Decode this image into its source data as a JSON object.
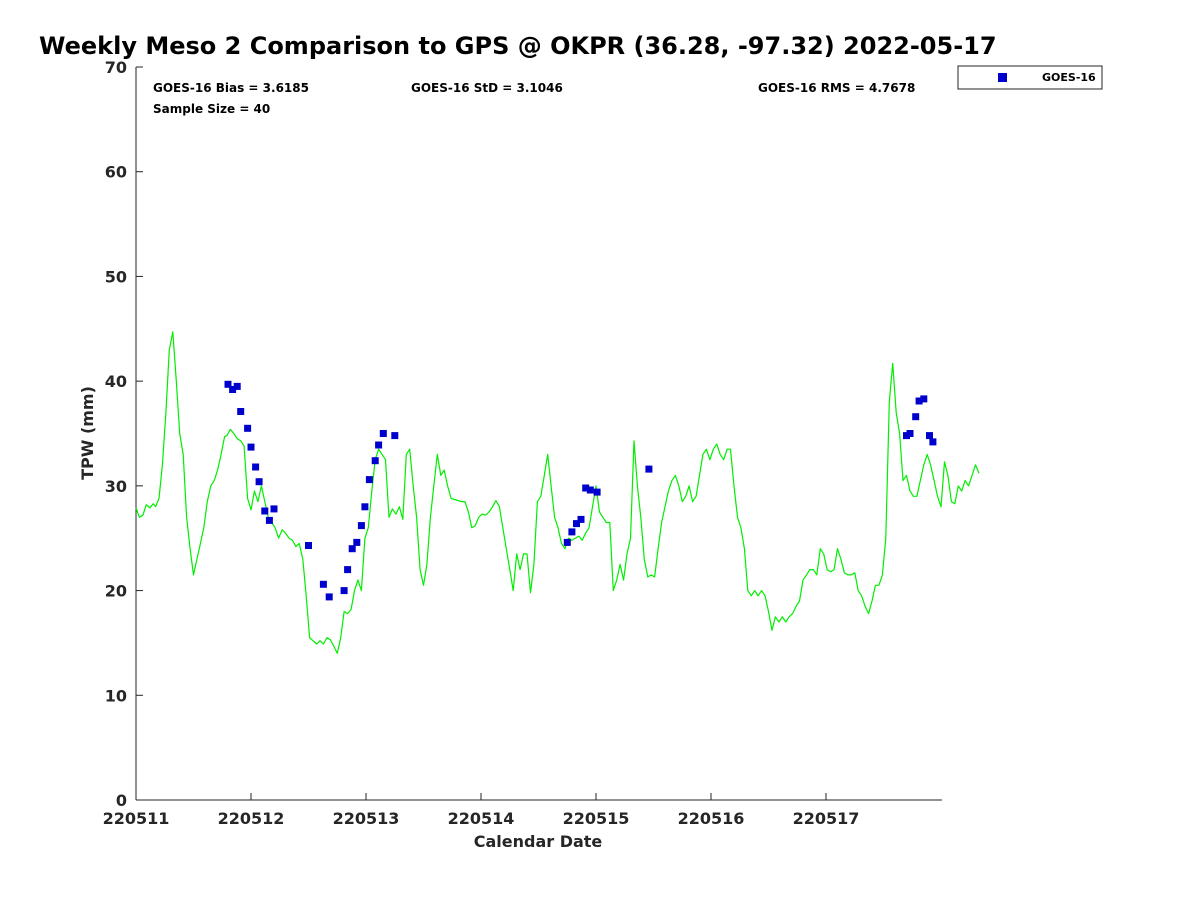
{
  "chart_data": {
    "type": "line",
    "title": "Weekly Meso 2 Comparison to GPS @ OKPR (36.28, -97.32) 2022-05-17",
    "xlabel": "Calendar Date",
    "ylabel": "TPW (mm)",
    "xlim": [
      0,
      7
    ],
    "ylim": [
      0,
      70
    ],
    "x_ticks": [
      0,
      1,
      2,
      3,
      4,
      5,
      6
    ],
    "x_tick_labels": [
      "220511",
      "220512",
      "220513",
      "220514",
      "220515",
      "220516",
      "220517"
    ],
    "y_ticks": [
      0,
      10,
      20,
      30,
      40,
      50,
      60,
      70
    ],
    "y_tick_labels": [
      "0",
      "10",
      "20",
      "30",
      "40",
      "50",
      "60",
      "70"
    ],
    "stats": {
      "bias": "GOES-16 Bias = 3.6185",
      "std": "GOES-16 StD = 3.1046",
      "rms": "GOES-16 RMS = 4.7678",
      "sample": "Sample Size = 40"
    },
    "legend": {
      "label": "GOES-16",
      "position": "top-right outside"
    },
    "colors": {
      "gps_line": "#00ee00",
      "goes_marker": "#0000cc"
    },
    "gps_series": {
      "name": "GPS",
      "points": [
        [
          0.0,
          27.9
        ],
        [
          0.03,
          27.0
        ],
        [
          0.06,
          27.2
        ],
        [
          0.09,
          28.2
        ],
        [
          0.12,
          27.9
        ],
        [
          0.15,
          28.3
        ],
        [
          0.17,
          28.0
        ],
        [
          0.2,
          28.8
        ],
        [
          0.23,
          32.0
        ],
        [
          0.26,
          37.0
        ],
        [
          0.29,
          43.0
        ],
        [
          0.32,
          44.7
        ],
        [
          0.35,
          40.0
        ],
        [
          0.38,
          35.0
        ],
        [
          0.41,
          33.0
        ],
        [
          0.44,
          27.0
        ],
        [
          0.47,
          24.0
        ],
        [
          0.5,
          21.5
        ],
        [
          0.53,
          23.0
        ],
        [
          0.56,
          24.5
        ],
        [
          0.59,
          26.0
        ],
        [
          0.62,
          28.5
        ],
        [
          0.65,
          30.0
        ],
        [
          0.68,
          30.5
        ],
        [
          0.71,
          31.5
        ],
        [
          0.74,
          33.0
        ],
        [
          0.77,
          34.7
        ],
        [
          0.79,
          34.8
        ],
        [
          0.82,
          35.4
        ],
        [
          0.85,
          35.0
        ],
        [
          0.88,
          34.5
        ],
        [
          0.91,
          34.3
        ],
        [
          0.94,
          33.8
        ],
        [
          0.97,
          28.8
        ],
        [
          1.0,
          27.7
        ],
        [
          1.03,
          29.5
        ],
        [
          1.06,
          28.5
        ],
        [
          1.09,
          30.0
        ],
        [
          1.12,
          28.5
        ],
        [
          1.15,
          27.0
        ],
        [
          1.18,
          26.5
        ],
        [
          1.21,
          26.0
        ],
        [
          1.24,
          25.0
        ],
        [
          1.27,
          25.8
        ],
        [
          1.3,
          25.5
        ],
        [
          1.33,
          25.0
        ],
        [
          1.36,
          24.8
        ],
        [
          1.39,
          24.2
        ],
        [
          1.42,
          24.5
        ],
        [
          1.45,
          23.0
        ],
        [
          1.48,
          19.5
        ],
        [
          1.51,
          15.5
        ],
        [
          1.54,
          15.2
        ],
        [
          1.57,
          14.9
        ],
        [
          1.6,
          15.2
        ],
        [
          1.63,
          14.9
        ],
        [
          1.66,
          15.5
        ],
        [
          1.69,
          15.3
        ],
        [
          1.72,
          14.7
        ],
        [
          1.75,
          14.0
        ],
        [
          1.78,
          15.5
        ],
        [
          1.81,
          18.0
        ],
        [
          1.84,
          17.8
        ],
        [
          1.87,
          18.2
        ],
        [
          1.9,
          20.0
        ],
        [
          1.93,
          21.0
        ],
        [
          1.96,
          20.0
        ],
        [
          1.99,
          25.0
        ],
        [
          2.02,
          26.0
        ],
        [
          2.05,
          29.5
        ],
        [
          2.08,
          32.5
        ],
        [
          2.11,
          33.5
        ],
        [
          2.14,
          33.0
        ],
        [
          2.17,
          32.5
        ],
        [
          2.2,
          27.0
        ],
        [
          2.23,
          27.8
        ],
        [
          2.26,
          27.3
        ],
        [
          2.29,
          28.0
        ],
        [
          2.32,
          26.8
        ],
        [
          2.35,
          33.0
        ],
        [
          2.38,
          33.5
        ],
        [
          2.41,
          30.0
        ],
        [
          2.44,
          27.0
        ],
        [
          2.47,
          22.0
        ],
        [
          2.5,
          20.5
        ],
        [
          2.53,
          22.5
        ],
        [
          2.56,
          27.0
        ],
        [
          2.59,
          30.0
        ],
        [
          2.62,
          33.0
        ],
        [
          2.65,
          31.0
        ],
        [
          2.68,
          31.5
        ],
        [
          2.71,
          30.0
        ],
        [
          2.74,
          28.8
        ],
        [
          2.77,
          28.7
        ],
        [
          2.8,
          28.6
        ],
        [
          2.83,
          28.5
        ],
        [
          2.86,
          28.5
        ],
        [
          2.89,
          27.5
        ],
        [
          2.92,
          26.0
        ],
        [
          2.95,
          26.2
        ],
        [
          2.98,
          27.0
        ],
        [
          3.01,
          27.3
        ],
        [
          3.04,
          27.2
        ],
        [
          3.07,
          27.5
        ],
        [
          3.1,
          28.0
        ],
        [
          3.13,
          28.6
        ],
        [
          3.16,
          28.0
        ],
        [
          3.19,
          26.0
        ],
        [
          3.22,
          24.0
        ],
        [
          3.25,
          22.0
        ],
        [
          3.28,
          20.0
        ],
        [
          3.31,
          23.5
        ],
        [
          3.34,
          22.0
        ],
        [
          3.37,
          23.5
        ],
        [
          3.4,
          23.5
        ],
        [
          3.43,
          19.8
        ],
        [
          3.46,
          22.5
        ],
        [
          3.49,
          28.5
        ],
        [
          3.52,
          29.0
        ],
        [
          3.55,
          31.0
        ],
        [
          3.58,
          33.0
        ],
        [
          3.61,
          30.0
        ],
        [
          3.64,
          27.0
        ],
        [
          3.67,
          26.0
        ],
        [
          3.7,
          24.5
        ],
        [
          3.73,
          24.0
        ],
        [
          3.76,
          25.0
        ],
        [
          3.79,
          24.8
        ],
        [
          3.82,
          25.0
        ],
        [
          3.85,
          25.2
        ],
        [
          3.88,
          24.8
        ],
        [
          3.91,
          25.5
        ],
        [
          3.94,
          26.0
        ],
        [
          3.97,
          28.0
        ],
        [
          4.0,
          30.0
        ],
        [
          4.03,
          27.5
        ],
        [
          4.06,
          27.0
        ],
        [
          4.09,
          26.5
        ],
        [
          4.12,
          26.5
        ],
        [
          4.15,
          20.0
        ],
        [
          4.18,
          21.0
        ],
        [
          4.21,
          22.5
        ],
        [
          4.24,
          21.0
        ],
        [
          4.27,
          23.5
        ],
        [
          4.3,
          25.0
        ],
        [
          4.33,
          34.3
        ],
        [
          4.36,
          30.0
        ],
        [
          4.39,
          27.0
        ],
        [
          4.42,
          23.0
        ],
        [
          4.45,
          21.3
        ],
        [
          4.48,
          21.5
        ],
        [
          4.51,
          21.3
        ],
        [
          4.54,
          24.0
        ],
        [
          4.57,
          26.5
        ],
        [
          4.6,
          28.0
        ],
        [
          4.63,
          29.5
        ],
        [
          4.66,
          30.5
        ],
        [
          4.69,
          31.0
        ],
        [
          4.72,
          30.0
        ],
        [
          4.75,
          28.5
        ],
        [
          4.78,
          29.0
        ],
        [
          4.81,
          30.0
        ],
        [
          4.84,
          28.5
        ],
        [
          4.87,
          29.0
        ],
        [
          4.9,
          31.0
        ],
        [
          4.93,
          33.0
        ],
        [
          4.96,
          33.5
        ],
        [
          4.99,
          32.5
        ],
        [
          5.02,
          33.5
        ],
        [
          5.05,
          34.0
        ],
        [
          5.08,
          33.0
        ],
        [
          5.11,
          32.5
        ],
        [
          5.14,
          33.5
        ],
        [
          5.17,
          33.5
        ],
        [
          5.2,
          30.0
        ],
        [
          5.23,
          27.0
        ],
        [
          5.26,
          26.0
        ],
        [
          5.29,
          24.0
        ],
        [
          5.32,
          20.0
        ],
        [
          5.35,
          19.5
        ],
        [
          5.38,
          20.0
        ],
        [
          5.41,
          19.5
        ],
        [
          5.44,
          20.0
        ],
        [
          5.47,
          19.5
        ],
        [
          5.5,
          18.0
        ],
        [
          5.53,
          16.2
        ],
        [
          5.56,
          17.5
        ],
        [
          5.59,
          17.0
        ],
        [
          5.62,
          17.5
        ],
        [
          5.65,
          17.0
        ],
        [
          5.68,
          17.5
        ],
        [
          5.71,
          17.8
        ],
        [
          5.74,
          18.5
        ],
        [
          5.77,
          19.0
        ],
        [
          5.8,
          21.0
        ],
        [
          5.83,
          21.5
        ],
        [
          5.86,
          22.0
        ],
        [
          5.89,
          22.0
        ],
        [
          5.92,
          21.5
        ],
        [
          5.95,
          24.0
        ],
        [
          5.98,
          23.5
        ],
        [
          6.01,
          22.0
        ],
        [
          6.04,
          21.8
        ],
        [
          6.07,
          22.0
        ],
        [
          6.1,
          24.0
        ],
        [
          6.13,
          23.0
        ],
        [
          6.16,
          21.7
        ],
        [
          6.19,
          21.5
        ],
        [
          6.22,
          21.5
        ],
        [
          6.25,
          21.7
        ],
        [
          6.28,
          20.0
        ],
        [
          6.31,
          19.5
        ],
        [
          6.34,
          18.5
        ],
        [
          6.37,
          17.8
        ],
        [
          6.4,
          19.0
        ],
        [
          6.43,
          20.5
        ],
        [
          6.46,
          20.5
        ],
        [
          6.49,
          21.5
        ],
        [
          6.52,
          25.0
        ],
        [
          6.55,
          38.0
        ],
        [
          6.58,
          41.7
        ],
        [
          6.61,
          37.0
        ],
        [
          6.64,
          35.0
        ],
        [
          6.67,
          30.5
        ],
        [
          6.7,
          31.0
        ],
        [
          6.73,
          29.5
        ],
        [
          6.76,
          29.0
        ],
        [
          6.79,
          29.0
        ],
        [
          6.82,
          30.5
        ],
        [
          6.85,
          32.0
        ],
        [
          6.88,
          33.0
        ],
        [
          6.91,
          32.0
        ],
        [
          6.94,
          30.5
        ],
        [
          6.97,
          29.0
        ],
        [
          7.0,
          28.0
        ],
        [
          7.03,
          32.3
        ],
        [
          7.06,
          31.0
        ],
        [
          7.09,
          28.5
        ],
        [
          7.12,
          28.3
        ],
        [
          7.15,
          30.0
        ],
        [
          7.18,
          29.5
        ],
        [
          7.21,
          30.5
        ],
        [
          7.24,
          30.0
        ],
        [
          7.27,
          31.0
        ],
        [
          7.3,
          32.0
        ],
        [
          7.33,
          31.2
        ]
      ]
    },
    "goes_series": {
      "name": "GOES-16",
      "points": [
        [
          0.8,
          39.7
        ],
        [
          0.84,
          39.2
        ],
        [
          0.88,
          39.5
        ],
        [
          0.91,
          37.1
        ],
        [
          0.97,
          35.5
        ],
        [
          1.0,
          33.7
        ],
        [
          1.04,
          31.8
        ],
        [
          1.07,
          30.4
        ],
        [
          1.12,
          27.6
        ],
        [
          1.16,
          26.7
        ],
        [
          1.2,
          27.8
        ],
        [
          1.5,
          24.3
        ],
        [
          1.63,
          20.6
        ],
        [
          1.68,
          19.4
        ],
        [
          1.81,
          20.0
        ],
        [
          1.84,
          22.0
        ],
        [
          1.88,
          24.0
        ],
        [
          1.92,
          24.6
        ],
        [
          1.96,
          26.2
        ],
        [
          1.99,
          28.0
        ],
        [
          2.03,
          30.6
        ],
        [
          2.08,
          32.4
        ],
        [
          2.11,
          33.9
        ],
        [
          2.15,
          35.0
        ],
        [
          2.25,
          34.8
        ],
        [
          3.75,
          24.6
        ],
        [
          3.79,
          25.6
        ],
        [
          3.83,
          26.4
        ],
        [
          3.87,
          26.8
        ],
        [
          3.91,
          29.8
        ],
        [
          3.95,
          29.6
        ],
        [
          4.01,
          29.4
        ],
        [
          4.46,
          31.6
        ],
        [
          6.7,
          34.8
        ],
        [
          6.73,
          35.0
        ],
        [
          6.78,
          36.6
        ],
        [
          6.81,
          38.1
        ],
        [
          6.85,
          38.3
        ],
        [
          6.9,
          34.8
        ],
        [
          6.93,
          34.2
        ]
      ]
    }
  }
}
